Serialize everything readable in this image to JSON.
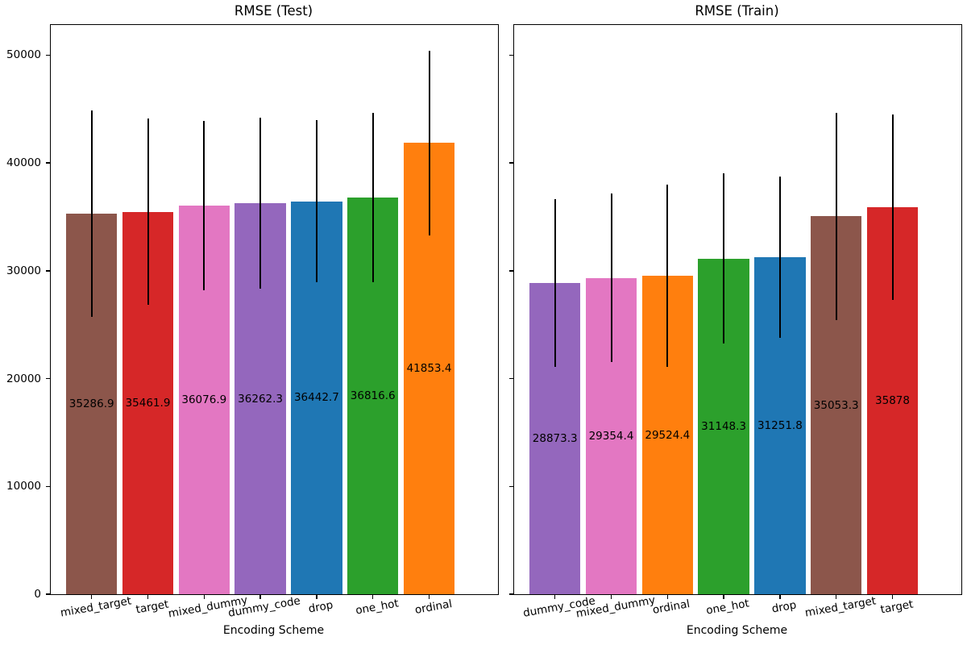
{
  "figure": {
    "background": "#ffffff",
    "text_color": "#000000",
    "error_bar_color": "#000000"
  },
  "chart_data": [
    {
      "type": "bar",
      "title": "RMSE (Test)",
      "xlabel": "Encoding Scheme",
      "ylabel": "",
      "categories": [
        "mixed_target",
        "target",
        "mixed_dummy",
        "dummy_code",
        "drop",
        "one_hot",
        "ordinal"
      ],
      "values": [
        35286.9,
        35461.9,
        36076.9,
        36262.3,
        36442.7,
        36816.6,
        41853.4
      ],
      "bar_labels": [
        "35286.9",
        "35461.9",
        "36076.9",
        "36262.3",
        "36442.7",
        "36816.6",
        "41853.4"
      ],
      "yerr": [
        9550,
        8650,
        7850,
        7950,
        7500,
        7850,
        8550
      ],
      "colors": [
        "#8c564b",
        "#d62728",
        "#e377c2",
        "#9467bd",
        "#1f77b4",
        "#2ca02c",
        "#ff7f0e"
      ],
      "ylim": [
        0,
        52800
      ],
      "yticks": [
        0,
        10000,
        20000,
        30000,
        40000,
        50000
      ],
      "ytick_labels": [
        "0",
        "10000",
        "20000",
        "30000",
        "40000",
        "50000"
      ],
      "show_ytick_labels": true,
      "grid": false,
      "legend": false
    },
    {
      "type": "bar",
      "title": "RMSE (Train)",
      "xlabel": "Encoding Scheme",
      "ylabel": "",
      "categories": [
        "dummy_code",
        "mixed_dummy",
        "ordinal",
        "one_hot",
        "drop",
        "mixed_target",
        "target"
      ],
      "values": [
        28873.3,
        29354.4,
        29524.4,
        31148.3,
        31251.8,
        35053.3,
        35878
      ],
      "bar_labels": [
        "28873.3",
        "29354.4",
        "29524.4",
        "31148.3",
        "31251.8",
        "35053.3",
        "35878"
      ],
      "yerr": [
        7750,
        7800,
        8450,
        7900,
        7500,
        9600,
        8600
      ],
      "colors": [
        "#9467bd",
        "#e377c2",
        "#ff7f0e",
        "#2ca02c",
        "#1f77b4",
        "#8c564b",
        "#d62728"
      ],
      "ylim": [
        0,
        52800
      ],
      "yticks": [
        0,
        10000,
        20000,
        30000,
        40000,
        50000
      ],
      "ytick_labels": [
        "0",
        "10000",
        "20000",
        "30000",
        "40000",
        "50000"
      ],
      "show_ytick_labels": false,
      "grid": false,
      "legend": false
    }
  ]
}
